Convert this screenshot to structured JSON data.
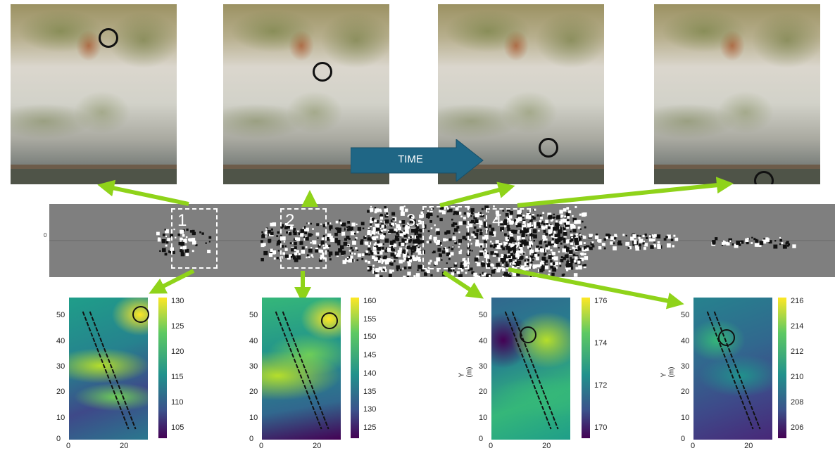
{
  "time_label": "TIME",
  "event_numbers": [
    "1",
    "2",
    "3",
    "4"
  ],
  "strip_tick": "0",
  "colors": {
    "arrow_green": "#8fd31a",
    "time_arrow": "#1f6685",
    "strip_gray": "#7f7f7f"
  },
  "maps": [
    {
      "ylabel": "",
      "yticks": [
        "50",
        "40",
        "30",
        "20",
        "10",
        "0"
      ],
      "xticks": [
        "0",
        "20"
      ],
      "cbar_ticks": [
        "130",
        "125",
        "120",
        "115",
        "110",
        "105"
      ]
    },
    {
      "ylabel": "",
      "yticks": [
        "50",
        "40",
        "30",
        "20",
        "10",
        "0"
      ],
      "xticks": [
        "0",
        "20"
      ],
      "cbar_ticks": [
        "160",
        "155",
        "150",
        "145",
        "140",
        "135",
        "130",
        "125"
      ]
    },
    {
      "ylabel": "Y (m)",
      "yticks": [
        "50",
        "40",
        "30",
        "20",
        "10",
        "0"
      ],
      "xticks": [
        "0",
        "20"
      ],
      "cbar_ticks": [
        "176",
        "174",
        "172",
        "170"
      ]
    },
    {
      "ylabel": "Y (m)",
      "yticks": [
        "50",
        "40",
        "30",
        "20",
        "10",
        "0"
      ],
      "xticks": [
        "0",
        "20"
      ],
      "cbar_ticks": [
        "216",
        "214",
        "212",
        "210",
        "208",
        "206"
      ]
    }
  ]
}
